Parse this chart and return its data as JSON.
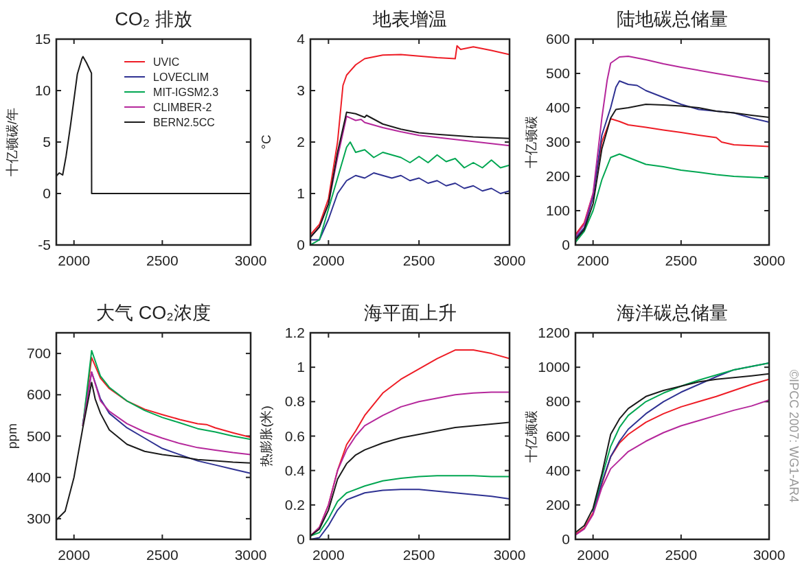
{
  "chart_data": [
    {
      "type": "line",
      "title": "CO₂ 排放",
      "ylabel": "十亿顿碳/年",
      "xlim": [
        1900,
        3000
      ],
      "xticks": [
        2000,
        2500,
        3000
      ],
      "ylim": [
        -5,
        15
      ],
      "yticks": [
        -5,
        0,
        5,
        10,
        15
      ],
      "legend": "top right",
      "series": [
        {
          "name": "UVIC",
          "color": "#ee1c25"
        },
        {
          "name": "LOVECLIM",
          "color": "#2e3192"
        },
        {
          "name": "MIT-IGSM2.3",
          "color": "#00a651"
        },
        {
          "name": "CLIMBER-2",
          "color": "#b5279b"
        },
        {
          "name": "BERN2.5CC",
          "color": "#1a1a1a",
          "x": [
            1900,
            1917,
            1936,
            1955,
            1981,
            2019,
            2045,
            2051,
            2071,
            2096,
            2099,
            2100,
            3000
          ],
          "values": [
            1.7,
            2.0,
            1.8,
            3.6,
            6.7,
            11.6,
            13.1,
            13.3,
            12.7,
            11.8,
            11.7,
            0,
            0
          ]
        }
      ]
    },
    {
      "type": "line",
      "title": "地表增温",
      "ylabel": "°C",
      "xlim": [
        1900,
        3000
      ],
      "xticks": [
        2000,
        2500,
        3000
      ],
      "ylim": [
        0,
        4
      ],
      "yticks": [
        0,
        1,
        2,
        3,
        4
      ],
      "series": [
        {
          "color": "#ee1c25",
          "x": [
            1900,
            1950,
            2000,
            2050,
            2080,
            2100,
            2150,
            2200,
            2300,
            2400,
            2500,
            2600,
            2700,
            2710,
            2730,
            2800,
            2900,
            3000
          ],
          "values": [
            0.2,
            0.4,
            0.9,
            2.0,
            3.1,
            3.3,
            3.5,
            3.62,
            3.69,
            3.7,
            3.67,
            3.64,
            3.62,
            3.87,
            3.8,
            3.85,
            3.78,
            3.7
          ]
        },
        {
          "color": "#2e3192",
          "x": [
            1900,
            1950,
            2000,
            2050,
            2100,
            2150,
            2200,
            2250,
            2300,
            2350,
            2400,
            2450,
            2500,
            2550,
            2600,
            2650,
            2700,
            2750,
            2800,
            2850,
            2900,
            2950,
            3000
          ],
          "values": [
            0.1,
            0.1,
            0.5,
            1.0,
            1.25,
            1.35,
            1.3,
            1.4,
            1.35,
            1.3,
            1.35,
            1.25,
            1.3,
            1.2,
            1.25,
            1.15,
            1.2,
            1.1,
            1.15,
            1.05,
            1.1,
            1.0,
            1.05
          ]
        },
        {
          "color": "#00a651",
          "x": [
            1900,
            1950,
            2000,
            2050,
            2100,
            2120,
            2150,
            2200,
            2250,
            2300,
            2350,
            2400,
            2450,
            2500,
            2550,
            2600,
            2650,
            2700,
            2750,
            2800,
            2850,
            2900,
            2950,
            3000
          ],
          "values": [
            0.0,
            0.1,
            0.7,
            1.3,
            1.9,
            2.0,
            1.8,
            1.85,
            1.7,
            1.8,
            1.75,
            1.7,
            1.6,
            1.72,
            1.6,
            1.75,
            1.62,
            1.68,
            1.5,
            1.6,
            1.5,
            1.65,
            1.5,
            1.55
          ]
        },
        {
          "color": "#b5279b",
          "x": [
            1900,
            1950,
            2000,
            2050,
            2100,
            2150,
            2180,
            2200,
            2300,
            2400,
            2500,
            2700,
            3000
          ],
          "values": [
            0.15,
            0.35,
            0.8,
            1.7,
            2.5,
            2.42,
            2.44,
            2.38,
            2.28,
            2.2,
            2.13,
            2.05,
            1.93
          ]
        },
        {
          "color": "#1a1a1a",
          "x": [
            1900,
            1950,
            2000,
            2050,
            2100,
            2150,
            2200,
            2210,
            2300,
            2400,
            2500,
            2600,
            2800,
            3000
          ],
          "values": [
            0.15,
            0.35,
            0.8,
            1.8,
            2.58,
            2.55,
            2.48,
            2.52,
            2.35,
            2.25,
            2.18,
            2.15,
            2.1,
            2.07
          ]
        }
      ]
    },
    {
      "type": "line",
      "title": "陆地碳总储量",
      "ylabel": "十亿顿碳",
      "xlim": [
        1900,
        3000
      ],
      "xticks": [
        2000,
        2500,
        3000
      ],
      "ylim": [
        0,
        600
      ],
      "yticks": [
        0,
        100,
        200,
        300,
        400,
        500,
        600
      ],
      "series": [
        {
          "color": "#ee1c25",
          "x": [
            1900,
            1950,
            2000,
            2050,
            2100,
            2150,
            2200,
            2300,
            2400,
            2500,
            2600,
            2700,
            2730,
            2800,
            3000
          ],
          "values": [
            30,
            65,
            150,
            300,
            368,
            360,
            350,
            343,
            335,
            328,
            320,
            313,
            300,
            292,
            287
          ]
        },
        {
          "color": "#2e3192",
          "x": [
            1900,
            1950,
            2000,
            2050,
            2100,
            2130,
            2150,
            2200,
            2250,
            2300,
            2400,
            2500,
            2600,
            2700,
            2800,
            2900,
            3000
          ],
          "values": [
            20,
            50,
            140,
            320,
            400,
            460,
            478,
            468,
            465,
            450,
            430,
            410,
            395,
            390,
            385,
            370,
            358
          ]
        },
        {
          "color": "#00a651",
          "x": [
            1900,
            1950,
            2000,
            2050,
            2100,
            2150,
            2200,
            2300,
            2400,
            2500,
            2600,
            2700,
            2800,
            3000
          ],
          "values": [
            8,
            40,
            100,
            190,
            255,
            265,
            255,
            235,
            228,
            218,
            212,
            205,
            200,
            195
          ]
        },
        {
          "color": "#b5279b",
          "x": [
            1900,
            1950,
            2000,
            2050,
            2080,
            2100,
            2150,
            2200,
            2300,
            2400,
            2500,
            2700,
            2900,
            3000
          ],
          "values": [
            25,
            60,
            150,
            370,
            480,
            530,
            548,
            550,
            540,
            528,
            518,
            500,
            483,
            475
          ]
        },
        {
          "color": "#1a1a1a",
          "x": [
            1900,
            1950,
            2000,
            2050,
            2100,
            2130,
            2200,
            2300,
            2400,
            2500,
            2600,
            2700,
            2800,
            2900,
            3000
          ],
          "values": [
            15,
            45,
            120,
            280,
            370,
            395,
            400,
            410,
            408,
            405,
            400,
            390,
            385,
            378,
            372
          ]
        }
      ]
    },
    {
      "type": "line",
      "title": "大气 CO₂浓度",
      "ylabel": "ppm",
      "xlim": [
        1900,
        3000
      ],
      "xticks": [
        2000,
        2500,
        3000
      ],
      "ylim": [
        250,
        750
      ],
      "yticks": [
        300,
        400,
        500,
        600,
        700
      ],
      "series": [
        {
          "color": "#ee1c25",
          "x": [
            2050,
            2100,
            2150,
            2200,
            2300,
            2400,
            2500,
            2600,
            2700,
            2750,
            2800,
            2900,
            3000
          ],
          "values": [
            525,
            690,
            640,
            615,
            585,
            565,
            552,
            540,
            530,
            528,
            520,
            508,
            497
          ]
        },
        {
          "color": "#2e3192",
          "x": [
            2050,
            2100,
            2150,
            2200,
            2300,
            2400,
            2500,
            2600,
            2700,
            2800,
            2900,
            3000
          ],
          "values": [
            530,
            655,
            590,
            555,
            520,
            495,
            470,
            455,
            440,
            430,
            420,
            410
          ]
        },
        {
          "color": "#00a651",
          "x": [
            2050,
            2100,
            2150,
            2200,
            2300,
            2400,
            2500,
            2600,
            2700,
            2800,
            2900,
            3000
          ],
          "values": [
            525,
            707,
            645,
            618,
            585,
            562,
            545,
            532,
            518,
            510,
            500,
            492
          ]
        },
        {
          "color": "#b5279b",
          "x": [
            2050,
            2100,
            2150,
            2200,
            2300,
            2400,
            2500,
            2600,
            2700,
            2800,
            2900,
            3000
          ],
          "values": [
            525,
            655,
            585,
            560,
            530,
            510,
            495,
            482,
            472,
            466,
            460,
            455
          ]
        },
        {
          "color": "#1a1a1a",
          "x": [
            1900,
            1950,
            2000,
            2050,
            2100,
            2120,
            2150,
            2200,
            2300,
            2400,
            2500,
            2600,
            2700,
            2800,
            2900,
            3000
          ],
          "values": [
            297,
            318,
            400,
            520,
            630,
            590,
            555,
            515,
            480,
            463,
            455,
            450,
            443,
            440,
            437,
            435
          ]
        }
      ]
    },
    {
      "type": "line",
      "title": "海平面上升",
      "ylabel": "热膨胀(米)",
      "xlim": [
        1900,
        3000
      ],
      "xticks": [
        2000,
        2500,
        3000
      ],
      "ylim": [
        0,
        1.2
      ],
      "yticks": [
        0,
        0.2,
        0.4,
        0.6,
        0.8,
        1,
        1.2
      ],
      "series": [
        {
          "color": "#ee1c25",
          "x": [
            1900,
            1950,
            2000,
            2050,
            2100,
            2150,
            2200,
            2300,
            2400,
            2500,
            2600,
            2700,
            2750,
            2800,
            2900,
            3000
          ],
          "values": [
            0.02,
            0.07,
            0.2,
            0.4,
            0.55,
            0.63,
            0.72,
            0.85,
            0.93,
            0.99,
            1.05,
            1.1,
            1.1,
            1.1,
            1.08,
            1.05
          ]
        },
        {
          "color": "#2e3192",
          "x": [
            1900,
            1950,
            2000,
            2050,
            2100,
            2200,
            2300,
            2400,
            2500,
            2600,
            2700,
            2800,
            2900,
            3000
          ],
          "values": [
            0.0,
            0.01,
            0.08,
            0.17,
            0.23,
            0.27,
            0.285,
            0.29,
            0.29,
            0.28,
            0.27,
            0.26,
            0.25,
            0.235
          ]
        },
        {
          "color": "#00a651",
          "x": [
            1900,
            1950,
            2000,
            2050,
            2100,
            2200,
            2300,
            2400,
            2500,
            2600,
            2700,
            2800,
            2900,
            3000
          ],
          "values": [
            0.02,
            0.04,
            0.12,
            0.22,
            0.27,
            0.31,
            0.34,
            0.355,
            0.365,
            0.37,
            0.37,
            0.37,
            0.365,
            0.365
          ]
        },
        {
          "color": "#b5279b",
          "x": [
            1900,
            1950,
            2000,
            2050,
            2100,
            2150,
            2200,
            2300,
            2400,
            2500,
            2600,
            2700,
            2800,
            2900,
            3000
          ],
          "values": [
            0.02,
            0.07,
            0.2,
            0.4,
            0.52,
            0.6,
            0.66,
            0.72,
            0.77,
            0.8,
            0.82,
            0.84,
            0.85,
            0.855,
            0.855
          ]
        },
        {
          "color": "#1a1a1a",
          "x": [
            1900,
            1950,
            2000,
            2050,
            2100,
            2150,
            2200,
            2300,
            2400,
            2500,
            2600,
            2700,
            2800,
            2900,
            3000
          ],
          "values": [
            0.02,
            0.06,
            0.17,
            0.35,
            0.44,
            0.49,
            0.52,
            0.56,
            0.59,
            0.61,
            0.63,
            0.65,
            0.66,
            0.67,
            0.68
          ]
        }
      ]
    },
    {
      "type": "line",
      "title": "海洋碳总储量",
      "ylabel": "十亿顿碳",
      "xlim": [
        1900,
        3000
      ],
      "xticks": [
        2000,
        2500,
        3000
      ],
      "ylim": [
        0,
        1200
      ],
      "yticks": [
        0,
        200,
        400,
        600,
        800,
        1000,
        1200
      ],
      "annotations": [
        "©IPCC 2007: WG1-AR4"
      ],
      "series": [
        {
          "color": "#ee1c25",
          "x": [
            1900,
            1950,
            2000,
            2050,
            2100,
            2150,
            2200,
            2300,
            2400,
            2500,
            2600,
            2700,
            2800,
            2900,
            3000
          ],
          "values": [
            30,
            65,
            155,
            320,
            480,
            560,
            610,
            680,
            730,
            770,
            800,
            830,
            865,
            900,
            930
          ]
        },
        {
          "color": "#2e3192",
          "x": [
            2000,
            2050,
            2100,
            2150,
            2200,
            2300,
            2400,
            2500,
            2600,
            2700,
            2800,
            2900,
            3000
          ],
          "values": [
            160,
            330,
            480,
            570,
            640,
            730,
            800,
            855,
            900,
            945,
            985,
            1005,
            1025
          ]
        },
        {
          "color": "#00a651",
          "x": [
            2000,
            2050,
            2100,
            2150,
            2200,
            2300,
            2400,
            2500,
            2600,
            2700,
            2800,
            2900,
            3000
          ],
          "values": [
            170,
            360,
            540,
            650,
            720,
            800,
            850,
            890,
            925,
            955,
            985,
            1005,
            1025
          ]
        },
        {
          "color": "#b5279b",
          "x": [
            1900,
            1950,
            2000,
            2050,
            2100,
            2150,
            2200,
            2300,
            2400,
            2500,
            2600,
            2700,
            2800,
            2900,
            3000
          ],
          "values": [
            25,
            60,
            145,
            300,
            410,
            460,
            510,
            570,
            620,
            660,
            690,
            720,
            750,
            775,
            810
          ]
        },
        {
          "color": "#1a1a1a",
          "x": [
            1900,
            1950,
            2000,
            2050,
            2100,
            2150,
            2200,
            2300,
            2400,
            2500,
            2600,
            2700,
            2800,
            2900,
            3000
          ],
          "values": [
            40,
            80,
            180,
            380,
            610,
            700,
            760,
            830,
            865,
            890,
            915,
            930,
            940,
            950,
            962
          ]
        }
      ]
    }
  ]
}
